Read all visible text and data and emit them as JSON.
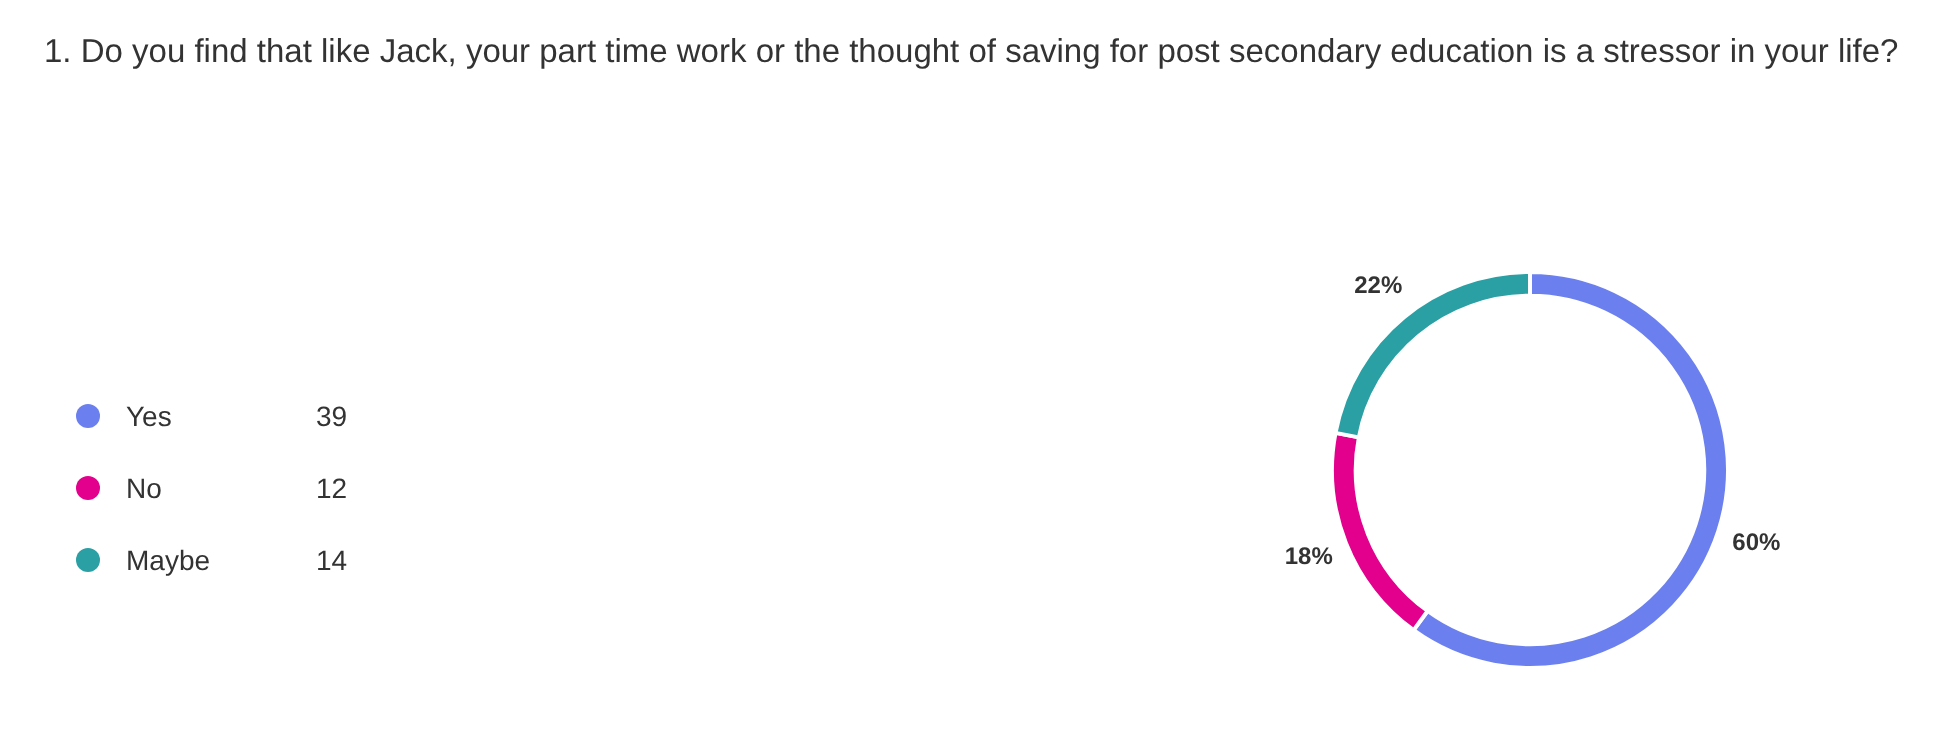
{
  "chart_data": {
    "type": "donut",
    "title": "1. Do you find that like Jack, your part time work or the thought of saving for post secondary education is a stressor in your life?",
    "categories": [
      "Yes",
      "No",
      "Maybe"
    ],
    "values": [
      60,
      18,
      22
    ],
    "colors": [
      "#6b80ee",
      "#e3008c",
      "#2aa0a4"
    ],
    "value_labels": [
      "60%",
      "18%",
      "22%"
    ],
    "annotations": [
      {
        "text": "39",
        "x": "Yes"
      },
      {
        "text": "12",
        "x": "No"
      },
      {
        "text": "14",
        "x": "Maybe"
      }
    ],
    "legend": "left"
  }
}
